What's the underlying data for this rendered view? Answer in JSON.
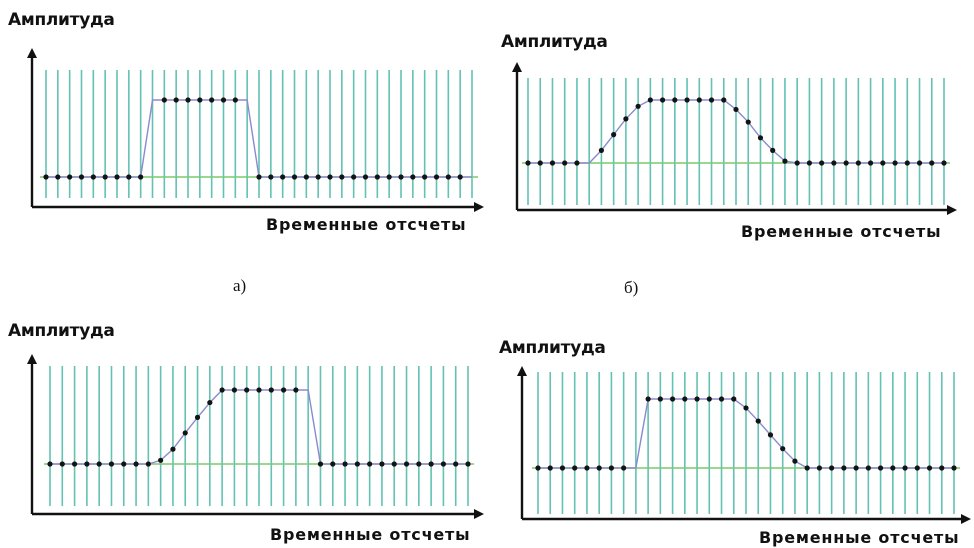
{
  "labels": {
    "y_axis": "Амплитуда",
    "x_axis": "Временные отсчеты"
  },
  "captions": {
    "a": "а)",
    "b": "б)"
  },
  "colors": {
    "grid": "#63c2b3",
    "baseline": "#7ac96e",
    "curve": "#8a8ad0",
    "points": "#141414",
    "axis": "#111111"
  },
  "chart_data": [
    {
      "id": "a",
      "type": "line",
      "grid_lines": 36,
      "samples": [
        0,
        0,
        0,
        0,
        0,
        0,
        0,
        0,
        0,
        1,
        1,
        1,
        1,
        1,
        1,
        1,
        1,
        1,
        0,
        0,
        0,
        0,
        0,
        0,
        0,
        0,
        0,
        0,
        0,
        0,
        0,
        0,
        0,
        0,
        0,
        0,
        0
      ],
      "points_shown": [
        0,
        1,
        2,
        3,
        4,
        5,
        6,
        7,
        8,
        10,
        11,
        12,
        13,
        14,
        15,
        16,
        18,
        19,
        20,
        21,
        22,
        23,
        24,
        25,
        26,
        27,
        28,
        29,
        30,
        31,
        32,
        33,
        34,
        35
      ]
    },
    {
      "id": "b",
      "type": "line",
      "grid_lines": 34,
      "samples": [
        0,
        0,
        0,
        0,
        0,
        0,
        0.2,
        0.45,
        0.7,
        0.9,
        1,
        1,
        1,
        1,
        1,
        1,
        1,
        0.85,
        0.65,
        0.4,
        0.2,
        0.03,
        0,
        0,
        0,
        0,
        0,
        0,
        0,
        0,
        0,
        0,
        0,
        0,
        0
      ],
      "points_shown": [
        0,
        1,
        2,
        3,
        4,
        6,
        7,
        8,
        9,
        10,
        11,
        12,
        13,
        14,
        15,
        16,
        17,
        18,
        19,
        20,
        21,
        22,
        23,
        24,
        25,
        26,
        27,
        28,
        29,
        30,
        31,
        32,
        33,
        34
      ]
    },
    {
      "id": "c",
      "type": "line",
      "grid_lines": 34,
      "samples": [
        0,
        0,
        0,
        0,
        0,
        0,
        0,
        0,
        0,
        0.05,
        0.2,
        0.42,
        0.63,
        0.83,
        1,
        1,
        1,
        1,
        1,
        1,
        1,
        1,
        0,
        0,
        0,
        0,
        0,
        0,
        0,
        0,
        0,
        0,
        0,
        0,
        0
      ],
      "points_shown": [
        0,
        1,
        2,
        3,
        4,
        5,
        6,
        7,
        8,
        9,
        10,
        11,
        12,
        13,
        14,
        15,
        16,
        17,
        18,
        19,
        20,
        22,
        23,
        24,
        25,
        26,
        27,
        28,
        29,
        30,
        31,
        32,
        33,
        34
      ]
    },
    {
      "id": "d",
      "type": "line",
      "grid_lines": 34,
      "samples": [
        0,
        0,
        0,
        0,
        0,
        0,
        0,
        0,
        0,
        1,
        1,
        1,
        1,
        1,
        1,
        1,
        1,
        0.87,
        0.68,
        0.48,
        0.28,
        0.1,
        0,
        0,
        0,
        0,
        0,
        0,
        0,
        0,
        0,
        0,
        0,
        0,
        0
      ],
      "points_shown": [
        0,
        1,
        2,
        3,
        4,
        5,
        6,
        7,
        9,
        10,
        11,
        12,
        13,
        14,
        15,
        16,
        17,
        18,
        19,
        20,
        21,
        22,
        23,
        24,
        25,
        26,
        27,
        28,
        29,
        30,
        31,
        32,
        33,
        34
      ]
    }
  ]
}
